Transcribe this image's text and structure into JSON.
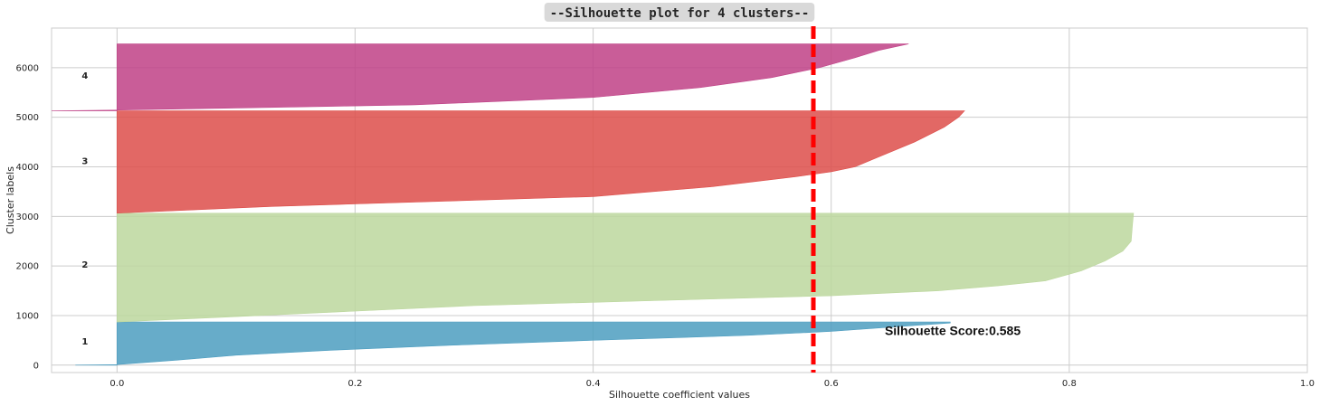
{
  "chart_data": {
    "type": "area",
    "title": "--Silhouette plot for 4 clusters--",
    "xlabel": "Silhouette coefficient values",
    "ylabel": "Cluster labels",
    "xlim": [
      -0.055,
      1.0
    ],
    "ylim": [
      -150,
      6800
    ],
    "xticks": [
      0.0,
      0.2,
      0.4,
      0.6,
      0.8,
      1.0
    ],
    "xtick_labels": [
      "0.0",
      "0.2",
      "0.4",
      "0.6",
      "0.8",
      "1.0"
    ],
    "yticks": [
      0,
      1000,
      2000,
      3000,
      4000,
      5000,
      6000
    ],
    "ytick_labels": [
      "0",
      "1000",
      "2000",
      "3000",
      "4000",
      "5000",
      "6000"
    ],
    "grid": true,
    "average_score": 0.585,
    "score_annotation": "Silhouette Score:0.585",
    "score_annotation_position": {
      "x": 0.645,
      "y": 700
    },
    "score_line_color": "#ff0000",
    "clusters": [
      {
        "label": "1",
        "color": "#4c9dc0",
        "y_start": 0,
        "y_end": 870,
        "label_y": 480,
        "profile": [
          [
            0,
            -0.035
          ],
          [
            10,
            0.0
          ],
          [
            100,
            0.05
          ],
          [
            200,
            0.1
          ],
          [
            300,
            0.18
          ],
          [
            400,
            0.28
          ],
          [
            500,
            0.4
          ],
          [
            600,
            0.53
          ],
          [
            680,
            0.6
          ],
          [
            750,
            0.64
          ],
          [
            800,
            0.67
          ],
          [
            850,
            0.7
          ],
          [
            870,
            0.7
          ]
        ]
      },
      {
        "label": "2",
        "color": "#bcd79d",
        "y_start": 870,
        "y_end": 3065,
        "label_y": 2030,
        "profile": [
          [
            870,
            0.0
          ],
          [
            1000,
            0.12
          ],
          [
            1200,
            0.3
          ],
          [
            1300,
            0.45
          ],
          [
            1400,
            0.6
          ],
          [
            1500,
            0.69
          ],
          [
            1600,
            0.74
          ],
          [
            1700,
            0.78
          ],
          [
            1900,
            0.81
          ],
          [
            2100,
            0.83
          ],
          [
            2300,
            0.845
          ],
          [
            2500,
            0.852
          ],
          [
            2800,
            0.853
          ],
          [
            3065,
            0.854
          ]
        ]
      },
      {
        "label": "3",
        "color": "#dd4e4a",
        "y_start": 3065,
        "y_end": 5130,
        "label_y": 4120,
        "profile": [
          [
            3065,
            0.0
          ],
          [
            3200,
            0.13
          ],
          [
            3400,
            0.4
          ],
          [
            3600,
            0.5
          ],
          [
            3800,
            0.57
          ],
          [
            3900,
            0.6
          ],
          [
            4000,
            0.62
          ],
          [
            4200,
            0.64
          ],
          [
            4500,
            0.67
          ],
          [
            4800,
            0.695
          ],
          [
            5000,
            0.707
          ],
          [
            5130,
            0.712
          ]
        ]
      },
      {
        "label": "4",
        "color": "#bf4186",
        "y_start": 5130,
        "y_end": 6480,
        "label_y": 5840,
        "profile": [
          [
            5130,
            -0.055
          ],
          [
            5145,
            0.0
          ],
          [
            5250,
            0.25
          ],
          [
            5400,
            0.4
          ],
          [
            5600,
            0.49
          ],
          [
            5800,
            0.55
          ],
          [
            6000,
            0.59
          ],
          [
            6200,
            0.62
          ],
          [
            6350,
            0.64
          ],
          [
            6480,
            0.665
          ]
        ]
      }
    ]
  }
}
